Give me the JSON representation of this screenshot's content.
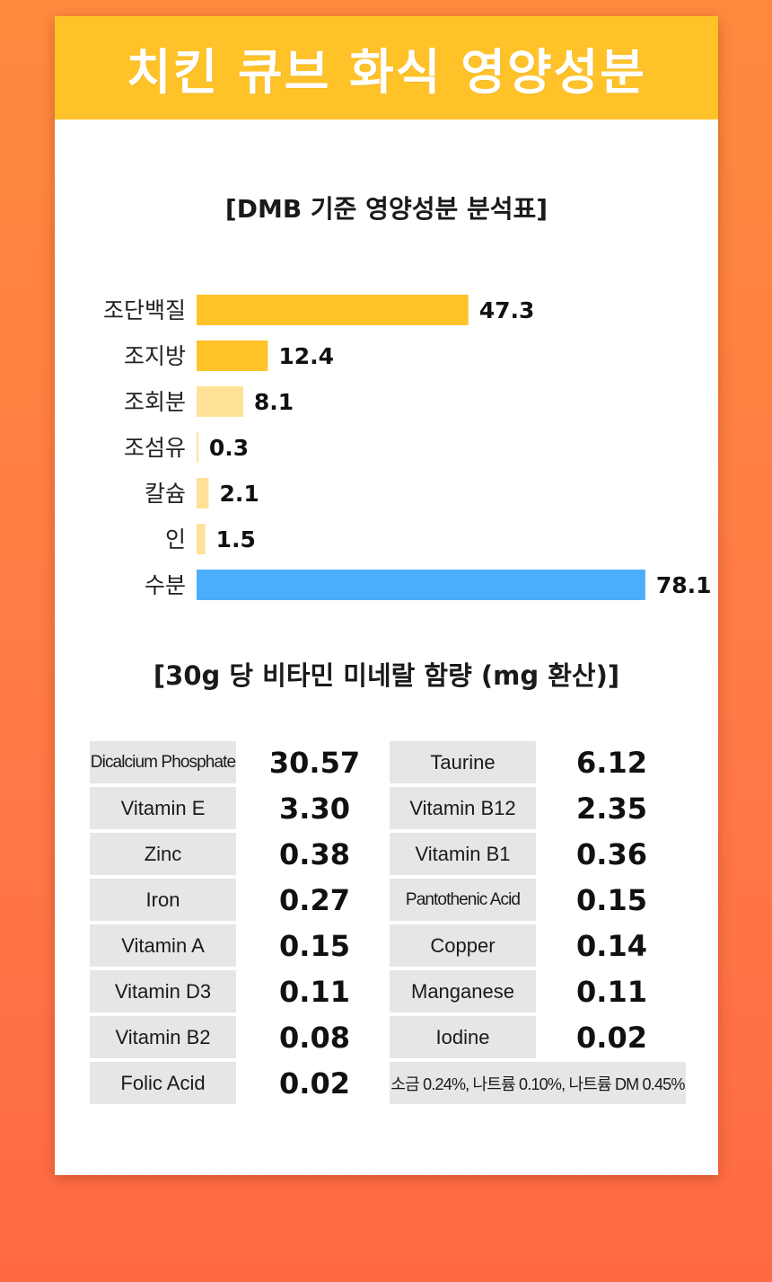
{
  "header": {
    "title": "치킨 큐브 화식 영양성분"
  },
  "chart_section": {
    "title": "[DMB 기준 영양성분 분석표]"
  },
  "chart_data": {
    "type": "bar",
    "orientation": "horizontal",
    "categories": [
      "조단백질",
      "조지방",
      "조회분",
      "조섬유",
      "칼슘",
      "인",
      "수분"
    ],
    "values": [
      47.3,
      12.4,
      8.1,
      0.3,
      2.1,
      1.5,
      78.1
    ],
    "value_labels": [
      "47.3",
      "12.4",
      "8.1",
      "0.3",
      "2.1",
      "1.5",
      "78.1"
    ],
    "colors": [
      "#ffc229",
      "#ffc229",
      "#ffe197",
      "#ffe197",
      "#ffe197",
      "#ffe197",
      "#4aaefd"
    ],
    "title": "[DMB 기준 영양성분 분석표]",
    "xlabel": "",
    "ylabel": "",
    "xlim": [
      0,
      80
    ],
    "grid": false,
    "legend": "none"
  },
  "table_section": {
    "title": "[30g 당 비타민 미네랄 함량 (mg 환산)]",
    "left_column": [
      {
        "name": "Dicalcium Phosphate",
        "value": "30.57"
      },
      {
        "name": "Vitamin E",
        "value": "3.30"
      },
      {
        "name": "Zinc",
        "value": "0.38"
      },
      {
        "name": "Iron",
        "value": "0.27"
      },
      {
        "name": "Vitamin A",
        "value": "0.15"
      },
      {
        "name": "Vitamin D3",
        "value": "0.11"
      },
      {
        "name": "Vitamin B2",
        "value": "0.08"
      },
      {
        "name": "Folic Acid",
        "value": "0.02"
      }
    ],
    "right_column": [
      {
        "name": "Taurine",
        "value": "6.12"
      },
      {
        "name": "Vitamin B12",
        "value": "2.35"
      },
      {
        "name": "Vitamin B1",
        "value": "0.36"
      },
      {
        "name": "Pantothenic Acid",
        "value": "0.15"
      },
      {
        "name": "Copper",
        "value": "0.14"
      },
      {
        "name": "Manganese",
        "value": "0.11"
      },
      {
        "name": "Iodine",
        "value": "0.02"
      }
    ],
    "note": "소금 0.24%, 나트륨 0.10%, 나트륨 DM 0.45%"
  }
}
